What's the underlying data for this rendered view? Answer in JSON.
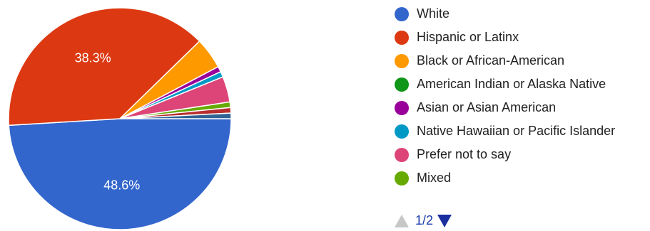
{
  "chart_data": {
    "type": "pie",
    "start": "3 o'clock, clockwise",
    "slices": [
      {
        "name": "White",
        "value": 48.6,
        "label": "48.6%",
        "color": "#3366cc"
      },
      {
        "name": "Hispanic or Latinx",
        "value": 38.3,
        "label": "38.3%",
        "color": "#dc3912"
      },
      {
        "name": "Black or African-American",
        "value": 4.5,
        "label": "",
        "color": "#ff9900"
      },
      {
        "name": "American Indian or Alaska Native",
        "value": 0,
        "label": "",
        "color": "#109618"
      },
      {
        "name": "Asian or Asian American",
        "value": 0.8,
        "label": "",
        "color": "#990099"
      },
      {
        "name": "Native Hawaiian or Pacific Islander",
        "value": 0.8,
        "label": "",
        "color": "#0099c6"
      },
      {
        "name": "Prefer not to say",
        "value": 3.7,
        "label": "",
        "color": "#dd4477"
      },
      {
        "name": "Mixed",
        "value": 0.8,
        "label": "",
        "color": "#66aa00"
      },
      {
        "name": "",
        "value": 0.8,
        "label": "",
        "color": "#b82e2e"
      },
      {
        "name": "",
        "value": 0.8,
        "label": "",
        "color": "#316395"
      }
    ],
    "legend_position": "right"
  },
  "legend": {
    "page_indicator": "1/2",
    "up_icon": "triangle-up-icon",
    "down_icon": "triangle-down-icon"
  }
}
